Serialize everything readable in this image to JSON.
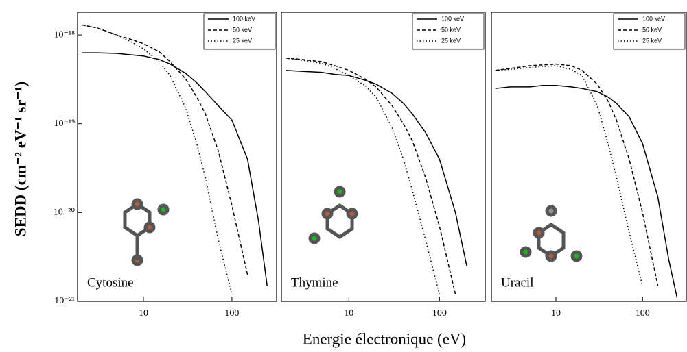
{
  "ylabel": "SEDD (cm⁻² eV⁻¹ sr⁻¹)",
  "xlabel": "Energie électronique (eV)",
  "chart_data": [
    {
      "type": "line",
      "annotation": "Cytosine",
      "log_x": true,
      "log_y": true,
      "legend": "upper right",
      "x": [
        2,
        3,
        5,
        7,
        10,
        15,
        20,
        30,
        40,
        50,
        70,
        100,
        150,
        200,
        250
      ],
      "xlim": [
        1.8,
        320
      ],
      "xticks": [
        10,
        100
      ],
      "ylim": [
        1e-21,
        1.8e-18
      ],
      "yticks": [
        {
          "value": 1e-21,
          "label": "10⁻²¹"
        },
        {
          "value": 1e-20,
          "label": "10⁻²⁰"
        },
        {
          "value": 1e-19,
          "label": "10⁻¹⁹"
        },
        {
          "value": 1e-18,
          "label": "10⁻¹⁸"
        }
      ],
      "series": [
        {
          "name": "100 keV",
          "color": "#000000",
          "style": "solid",
          "values": [
            6.3e-19,
            6.3e-19,
            6.2e-19,
            6e-19,
            5.8e-19,
            5.3e-19,
            4.7e-19,
            3.7e-19,
            2.9e-19,
            2.3e-19,
            1.6e-19,
            1.1e-19,
            4e-20,
            8e-21,
            1.5e-21
          ]
        },
        {
          "name": "50 keV",
          "color": "#000000",
          "style": "dashed",
          "values": [
            1.3e-18,
            1.2e-18,
            1e-18,
            9e-19,
            8e-19,
            6.5e-19,
            5e-19,
            3.2e-19,
            2e-19,
            1.3e-19,
            5e-20,
            1.2e-20,
            2e-21,
            null,
            null
          ]
        },
        {
          "name": "25 keV",
          "color": "#000000",
          "style": "dotted",
          "values": [
            1.3e-18,
            1.2e-18,
            1e-18,
            8.5e-19,
            7e-19,
            5e-19,
            3.5e-19,
            1.5e-19,
            6e-20,
            2.5e-20,
            5e-21,
            1.2e-21,
            null,
            null,
            null
          ]
        }
      ]
    },
    {
      "type": "line",
      "annotation": "Thymine",
      "log_x": true,
      "log_y": true,
      "legend": "upper right",
      "x": [
        2,
        3,
        5,
        7,
        10,
        15,
        20,
        30,
        40,
        50,
        70,
        100,
        150,
        200,
        250
      ],
      "xlim": [
        1.8,
        320
      ],
      "xticks": [
        10,
        100
      ],
      "ylim": [
        1e-21,
        1.8e-18
      ],
      "series": [
        {
          "name": "100 keV",
          "color": "#000000",
          "style": "solid",
          "values": [
            4e-19,
            3.9e-19,
            3.8e-19,
            3.6e-19,
            3.5e-19,
            3.1e-19,
            2.8e-19,
            2.2e-19,
            1.7e-19,
            1.3e-19,
            8e-20,
            4e-20,
            1e-20,
            2.5e-21,
            null
          ]
        },
        {
          "name": "50 keV",
          "color": "#000000",
          "style": "dashed",
          "values": [
            5.5e-19,
            5.3e-19,
            5e-19,
            4.5e-19,
            4e-19,
            3.2e-19,
            2.6e-19,
            1.6e-19,
            1e-19,
            6.5e-20,
            2.5e-20,
            7e-21,
            1.2e-21,
            null,
            null
          ]
        },
        {
          "name": "25 keV",
          "color": "#000000",
          "style": "dotted",
          "values": [
            5.5e-19,
            5.2e-19,
            4.8e-19,
            4.2e-19,
            3.5e-19,
            2.7e-19,
            2e-19,
            9e-20,
            4e-20,
            1.8e-20,
            5e-21,
            1.2e-21,
            null,
            null,
            null
          ]
        }
      ]
    },
    {
      "type": "line",
      "annotation": "Uracil",
      "log_x": true,
      "log_y": true,
      "legend": "upper right",
      "x": [
        2,
        3,
        5,
        7,
        10,
        15,
        20,
        30,
        40,
        50,
        70,
        100,
        150,
        200,
        250
      ],
      "xlim": [
        1.8,
        320
      ],
      "xticks": [
        10,
        100
      ],
      "ylim": [
        1e-21,
        1.8e-18
      ],
      "series": [
        {
          "name": "100 keV",
          "color": "#000000",
          "style": "solid",
          "values": [
            2.5e-19,
            2.6e-19,
            2.6e-19,
            2.7e-19,
            2.7e-19,
            2.6e-19,
            2.5e-19,
            2.3e-19,
            2e-19,
            1.7e-19,
            1.2e-19,
            6e-20,
            1.5e-20,
            3e-21,
            1.1e-21
          ]
        },
        {
          "name": "50 keV",
          "color": "#000000",
          "style": "dashed",
          "values": [
            4e-19,
            4.2e-19,
            4.5e-19,
            4.6e-19,
            4.7e-19,
            4.5e-19,
            4e-19,
            2.8e-19,
            1.8e-19,
            1.1e-19,
            4e-20,
            1e-20,
            1.5e-21,
            null,
            null
          ]
        },
        {
          "name": "25 keV",
          "color": "#000000",
          "style": "dotted",
          "values": [
            4e-19,
            4.1e-19,
            4.3e-19,
            4.4e-19,
            4.5e-19,
            4.1e-19,
            3.5e-19,
            1.6e-19,
            6e-20,
            2.5e-20,
            6e-21,
            1.5e-21,
            null,
            null,
            null
          ]
        }
      ]
    }
  ]
}
